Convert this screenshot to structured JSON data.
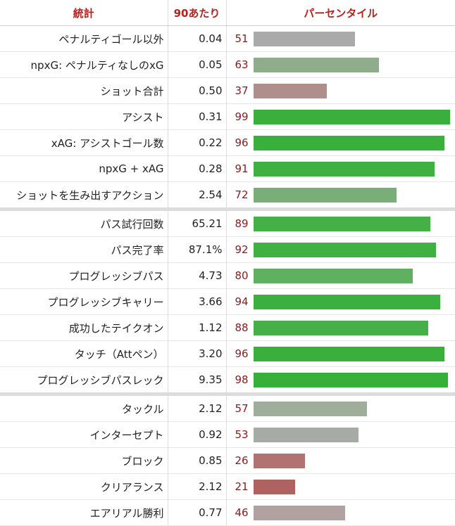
{
  "header": {
    "stat": "統計",
    "per90": "90あたり",
    "percentile": "パーセンタイル"
  },
  "groups": [
    {
      "rows": [
        {
          "stat": "ペナルティゴール以外",
          "per90": "0.04",
          "percentile": 51,
          "color": "#aaaaaa"
        },
        {
          "stat": "npxG: ペナルティなしのxG",
          "per90": "0.05",
          "percentile": 63,
          "color": "#8fad8a"
        },
        {
          "stat": "ショット合計",
          "per90": "0.50",
          "percentile": 37,
          "color": "#b08e8c"
        },
        {
          "stat": "アシスト",
          "per90": "0.31",
          "percentile": 99,
          "color": "#39b03c"
        },
        {
          "stat": "xAG: アシストゴール数",
          "per90": "0.22",
          "percentile": 96,
          "color": "#39b03c"
        },
        {
          "stat": "npxG + xAG",
          "per90": "0.28",
          "percentile": 91,
          "color": "#3fb142"
        },
        {
          "stat": "ショットを生み出すアクション",
          "per90": "2.54",
          "percentile": 72,
          "color": "#7aae78"
        }
      ]
    },
    {
      "rows": [
        {
          "stat": "パス試行回数",
          "per90": "65.21",
          "percentile": 89,
          "color": "#44b046"
        },
        {
          "stat": "パス完了率",
          "per90": "87.1%",
          "percentile": 92,
          "color": "#3fb142"
        },
        {
          "stat": "プログレッシブパス",
          "per90": "4.73",
          "percentile": 80,
          "color": "#5fb060"
        },
        {
          "stat": "プログレッシブキャリー",
          "per90": "3.66",
          "percentile": 94,
          "color": "#3cb03f"
        },
        {
          "stat": "成功したテイクオン",
          "per90": "1.12",
          "percentile": 88,
          "color": "#46b048"
        },
        {
          "stat": "タッチ（Attペン）",
          "per90": "3.20",
          "percentile": 96,
          "color": "#39b03c"
        },
        {
          "stat": "プログレッシブパスレック",
          "per90": "9.35",
          "percentile": 98,
          "color": "#37b03a"
        }
      ]
    },
    {
      "rows": [
        {
          "stat": "タックル",
          "per90": "2.12",
          "percentile": 57,
          "color": "#9eae9b"
        },
        {
          "stat": "インターセプト",
          "per90": "0.92",
          "percentile": 53,
          "color": "#a7aba5"
        },
        {
          "stat": "ブロック",
          "per90": "0.85",
          "percentile": 26,
          "color": "#b07370"
        },
        {
          "stat": "クリアランス",
          "per90": "2.12",
          "percentile": 21,
          "color": "#b06260"
        },
        {
          "stat": "エアリアル勝利",
          "per90": "0.77",
          "percentile": 46,
          "color": "#b1a2a1"
        }
      ]
    }
  ]
}
